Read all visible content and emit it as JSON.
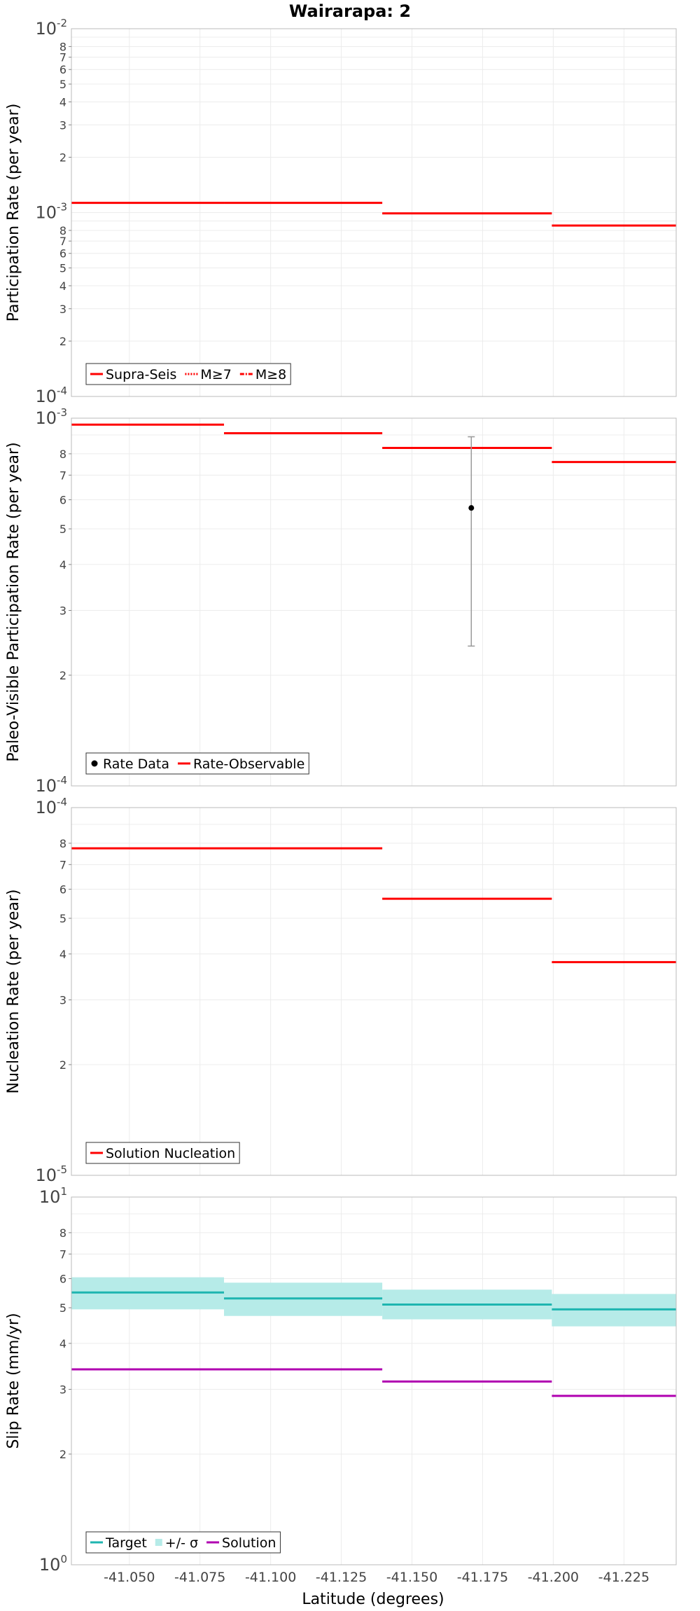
{
  "title": "Wairarapa: 2",
  "xlabel": "Latitude (degrees)",
  "x_tick_labels": [
    "-41.050",
    "-41.075",
    "-41.100",
    "-41.125",
    "-41.150",
    "-41.175",
    "-41.200",
    "-41.225"
  ],
  "chart_data": [
    {
      "type": "line",
      "ylabel": "Participation Rate (per year)",
      "yscale": "log",
      "ylim": [
        0.0001,
        0.01
      ],
      "xlim": [
        -41.0295,
        -41.2435
      ],
      "legend": [
        "Supra-Seis",
        "M≥7",
        "M≥8"
      ],
      "legend_placement": "bottom-left",
      "series": [
        {
          "name": "Supra-Seis",
          "color": "#ff0000",
          "segments": [
            {
              "x0": -41.0295,
              "x1": -41.0835,
              "y": 0.00113
            },
            {
              "x0": -41.0835,
              "x1": -41.1395,
              "y": 0.00113
            },
            {
              "x0": -41.1395,
              "x1": -41.1995,
              "y": 0.00099
            },
            {
              "x0": -41.1995,
              "x1": -41.2435,
              "y": 0.00085
            }
          ]
        }
      ]
    },
    {
      "type": "line",
      "ylabel": "Paleo-Visible Participation Rate (per year)",
      "yscale": "log",
      "ylim": [
        0.0001,
        0.001
      ],
      "xlim": [
        -41.0295,
        -41.2435
      ],
      "legend": [
        "Rate Data",
        "Rate-Observable"
      ],
      "legend_placement": "bottom-left",
      "series": [
        {
          "name": "Rate-Observable",
          "color": "#ff0000",
          "segments": [
            {
              "x0": -41.0295,
              "x1": -41.0835,
              "y": 0.00096
            },
            {
              "x0": -41.0835,
              "x1": -41.1395,
              "y": 0.00091
            },
            {
              "x0": -41.1395,
              "x1": -41.1995,
              "y": 0.00083
            },
            {
              "x0": -41.1995,
              "x1": -41.2435,
              "y": 0.00076
            }
          ]
        },
        {
          "name": "Rate Data",
          "color": "#000000",
          "points": [
            {
              "x": -41.171,
              "y": 0.00057,
              "err_low": 0.00024,
              "err_high": 0.00089
            }
          ]
        }
      ]
    },
    {
      "type": "line",
      "ylabel": "Nucleation Rate (per year)",
      "yscale": "log",
      "ylim": [
        1e-05,
        0.0001
      ],
      "xlim": [
        -41.0295,
        -41.2435
      ],
      "legend": [
        "Solution Nucleation"
      ],
      "legend_placement": "bottom-left",
      "series": [
        {
          "name": "Solution Nucleation",
          "color": "#ff0000",
          "segments": [
            {
              "x0": -41.0295,
              "x1": -41.0835,
              "y": 7.75e-05
            },
            {
              "x0": -41.0835,
              "x1": -41.1395,
              "y": 7.75e-05
            },
            {
              "x0": -41.1395,
              "x1": -41.1995,
              "y": 5.65e-05
            },
            {
              "x0": -41.1995,
              "x1": -41.2435,
              "y": 3.8e-05
            }
          ]
        }
      ]
    },
    {
      "type": "line",
      "ylabel": "Slip Rate (mm/yr)",
      "yscale": "log",
      "ylim": [
        1,
        10
      ],
      "xlim": [
        -41.0295,
        -41.2435
      ],
      "legend": [
        "Target",
        "+/- σ",
        "Solution"
      ],
      "legend_placement": "bottom-left",
      "series": [
        {
          "name": "+/- σ",
          "color": "#b6ebe8",
          "bands": [
            {
              "x0": -41.0295,
              "x1": -41.0835,
              "low": 4.95,
              "high": 6.05
            },
            {
              "x0": -41.0835,
              "x1": -41.1395,
              "low": 4.75,
              "high": 5.85
            },
            {
              "x0": -41.1395,
              "x1": -41.1995,
              "low": 4.65,
              "high": 5.6
            },
            {
              "x0": -41.1995,
              "x1": -41.2435,
              "low": 4.45,
              "high": 5.45
            }
          ]
        },
        {
          "name": "Target",
          "color": "#1eb5b0",
          "segments": [
            {
              "x0": -41.0295,
              "x1": -41.0835,
              "y": 5.5
            },
            {
              "x0": -41.0835,
              "x1": -41.1395,
              "y": 5.3
            },
            {
              "x0": -41.1395,
              "x1": -41.1995,
              "y": 5.1
            },
            {
              "x0": -41.1995,
              "x1": -41.2435,
              "y": 4.95
            }
          ]
        },
        {
          "name": "Solution",
          "color": "#b000b0",
          "segments": [
            {
              "x0": -41.0295,
              "x1": -41.0835,
              "y": 3.4
            },
            {
              "x0": -41.0835,
              "x1": -41.1395,
              "y": 3.4
            },
            {
              "x0": -41.1395,
              "x1": -41.1995,
              "y": 3.15
            },
            {
              "x0": -41.1995,
              "x1": -41.2435,
              "y": 2.88
            }
          ]
        }
      ]
    }
  ]
}
